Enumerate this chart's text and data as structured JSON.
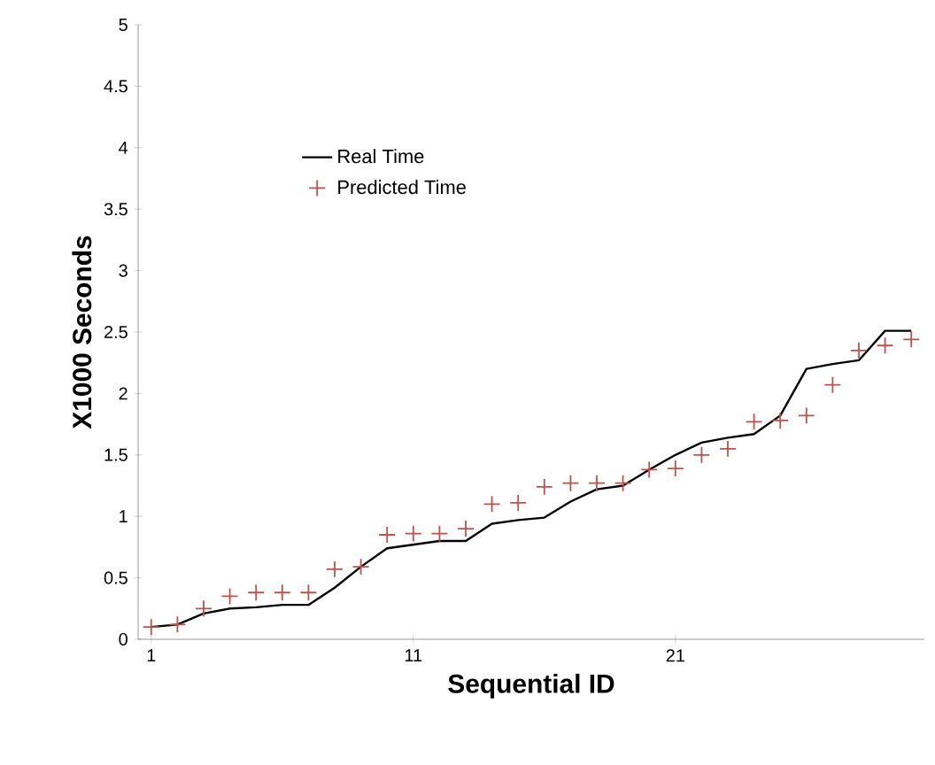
{
  "chart_data": {
    "type": "line",
    "xlabel": "Sequential ID",
    "ylabel": "X1000 Seconds",
    "x": [
      1,
      2,
      3,
      4,
      5,
      6,
      7,
      8,
      9,
      10,
      11,
      12,
      13,
      14,
      15,
      16,
      17,
      18,
      19,
      20,
      21,
      22,
      23,
      24,
      25,
      26,
      27,
      28,
      29,
      30
    ],
    "series": [
      {
        "name": "Real Time",
        "color": "#000000",
        "marker": "none",
        "values": [
          0.1,
          0.12,
          0.21,
          0.25,
          0.26,
          0.28,
          0.28,
          0.42,
          0.59,
          0.74,
          0.77,
          0.8,
          0.8,
          0.94,
          0.97,
          0.99,
          1.12,
          1.22,
          1.25,
          1.38,
          1.5,
          1.6,
          1.64,
          1.67,
          1.82,
          2.2,
          2.24,
          2.27,
          2.51,
          2.51
        ]
      },
      {
        "name": "Predicted Time",
        "type": "scatter",
        "color": "#c0504d",
        "marker": "cross",
        "values": [
          0.1,
          0.12,
          0.25,
          0.35,
          0.38,
          0.38,
          0.38,
          0.57,
          0.59,
          0.85,
          0.86,
          0.86,
          0.9,
          1.1,
          1.11,
          1.24,
          1.27,
          1.27,
          1.27,
          1.38,
          1.39,
          1.5,
          1.55,
          1.77,
          1.78,
          1.82,
          2.07,
          2.35,
          2.39,
          2.44
        ]
      }
    ],
    "xlim": [
      0.5,
      30.5
    ],
    "xticks": [
      1,
      11,
      21
    ],
    "ylim": [
      0,
      5
    ],
    "yticks": [
      0,
      0.5,
      1,
      1.5,
      2,
      2.5,
      3,
      3.5,
      4,
      4.5,
      5
    ],
    "legend": "top left",
    "grid": false
  }
}
